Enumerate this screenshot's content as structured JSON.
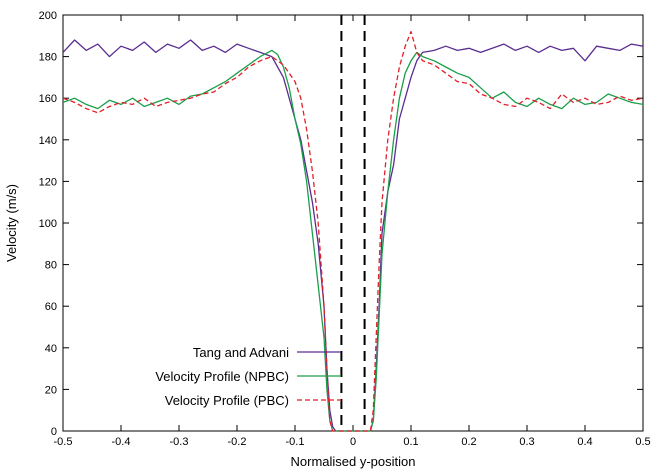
{
  "chart_data": {
    "type": "line",
    "title": "",
    "xlabel": "Normalised y-position",
    "ylabel": "Velocity (m/s)",
    "xlim": [
      -0.5,
      0.5
    ],
    "ylim": [
      0,
      200
    ],
    "x_ticks": [
      "-0.5",
      "-0.4",
      "-0.3",
      "-0.2",
      "-0.1",
      "0",
      "0.1",
      "0.2",
      "0.3",
      "0.4",
      "0.5"
    ],
    "y_ticks": [
      "0",
      "20",
      "40",
      "60",
      "80",
      "100",
      "120",
      "140",
      "160",
      "180",
      "200"
    ],
    "grid": false,
    "legend_position": "bottom-left",
    "vertical_markers": [
      -0.02,
      0.02
    ],
    "series": [
      {
        "name": "Tang and Advani",
        "color": "#5a2d91",
        "style": "solid",
        "x": [
          -0.5,
          -0.48,
          -0.46,
          -0.44,
          -0.42,
          -0.4,
          -0.38,
          -0.36,
          -0.34,
          -0.32,
          -0.3,
          -0.28,
          -0.26,
          -0.24,
          -0.22,
          -0.2,
          -0.18,
          -0.16,
          -0.14,
          -0.13,
          -0.12,
          -0.11,
          -0.1,
          -0.09,
          -0.08,
          -0.07,
          -0.06,
          -0.05,
          -0.045,
          -0.04,
          -0.035,
          -0.03,
          0.03,
          0.035,
          0.04,
          0.045,
          0.05,
          0.06,
          0.07,
          0.08,
          0.09,
          0.1,
          0.11,
          0.12,
          0.14,
          0.16,
          0.18,
          0.2,
          0.22,
          0.24,
          0.26,
          0.28,
          0.3,
          0.32,
          0.34,
          0.36,
          0.38,
          0.4,
          0.42,
          0.44,
          0.46,
          0.48,
          0.5
        ],
        "values": [
          182,
          188,
          183,
          186,
          180,
          185,
          183,
          187,
          182,
          186,
          184,
          188,
          183,
          185,
          182,
          186,
          184,
          182,
          180,
          175,
          170,
          160,
          150,
          140,
          125,
          110,
          90,
          60,
          30,
          10,
          2,
          0,
          0,
          5,
          30,
          60,
          95,
          115,
          128,
          150,
          160,
          170,
          178,
          182,
          183,
          185,
          183,
          184,
          182,
          184,
          186,
          183,
          185,
          182,
          185,
          183,
          184,
          178,
          185,
          184,
          183,
          186,
          185
        ]
      },
      {
        "name": "Velocity Profile (NPBC)",
        "color": "#1a9e4a",
        "style": "solid",
        "x": [
          -0.5,
          -0.48,
          -0.46,
          -0.44,
          -0.42,
          -0.4,
          -0.38,
          -0.36,
          -0.34,
          -0.32,
          -0.3,
          -0.28,
          -0.26,
          -0.24,
          -0.22,
          -0.2,
          -0.18,
          -0.16,
          -0.14,
          -0.13,
          -0.12,
          -0.11,
          -0.1,
          -0.09,
          -0.08,
          -0.07,
          -0.06,
          -0.05,
          -0.045,
          -0.04,
          -0.035,
          -0.03,
          0.03,
          0.035,
          0.04,
          0.045,
          0.05,
          0.06,
          0.07,
          0.08,
          0.09,
          0.1,
          0.11,
          0.12,
          0.14,
          0.16,
          0.18,
          0.2,
          0.22,
          0.24,
          0.26,
          0.28,
          0.3,
          0.32,
          0.34,
          0.36,
          0.38,
          0.4,
          0.42,
          0.44,
          0.46,
          0.48,
          0.5
        ],
        "values": [
          158,
          160,
          157,
          155,
          159,
          157,
          160,
          156,
          158,
          160,
          157,
          161,
          162,
          165,
          168,
          172,
          176,
          180,
          183,
          181,
          175,
          165,
          150,
          138,
          120,
          95,
          70,
          45,
          20,
          5,
          0,
          0,
          0,
          5,
          25,
          55,
          85,
          115,
          140,
          160,
          172,
          178,
          182,
          180,
          178,
          175,
          172,
          170,
          165,
          160,
          163,
          158,
          156,
          160,
          157,
          155,
          160,
          157,
          158,
          162,
          160,
          158,
          157
        ]
      },
      {
        "name": "Velocity Profile (PBC)",
        "color": "#e0202a",
        "style": "dashed",
        "x": [
          -0.5,
          -0.48,
          -0.46,
          -0.44,
          -0.42,
          -0.4,
          -0.38,
          -0.36,
          -0.34,
          -0.32,
          -0.3,
          -0.28,
          -0.26,
          -0.24,
          -0.22,
          -0.2,
          -0.18,
          -0.16,
          -0.14,
          -0.13,
          -0.12,
          -0.11,
          -0.1,
          -0.09,
          -0.08,
          -0.07,
          -0.06,
          -0.05,
          -0.045,
          -0.04,
          -0.035,
          -0.03,
          0.03,
          0.035,
          0.04,
          0.045,
          0.05,
          0.06,
          0.07,
          0.08,
          0.09,
          0.1,
          0.11,
          0.12,
          0.14,
          0.16,
          0.18,
          0.2,
          0.22,
          0.24,
          0.26,
          0.28,
          0.3,
          0.32,
          0.34,
          0.36,
          0.38,
          0.4,
          0.42,
          0.44,
          0.46,
          0.48,
          0.5
        ],
        "values": [
          160,
          158,
          155,
          153,
          156,
          158,
          157,
          160,
          156,
          158,
          159,
          160,
          162,
          163,
          167,
          170,
          175,
          178,
          180,
          178,
          176,
          172,
          168,
          160,
          145,
          125,
          100,
          60,
          30,
          5,
          0,
          0,
          0,
          10,
          45,
          80,
          110,
          140,
          160,
          175,
          185,
          192,
          182,
          178,
          176,
          172,
          168,
          167,
          162,
          160,
          157,
          156,
          160,
          158,
          155,
          162,
          158,
          160,
          157,
          158,
          161,
          159,
          160
        ]
      }
    ]
  }
}
